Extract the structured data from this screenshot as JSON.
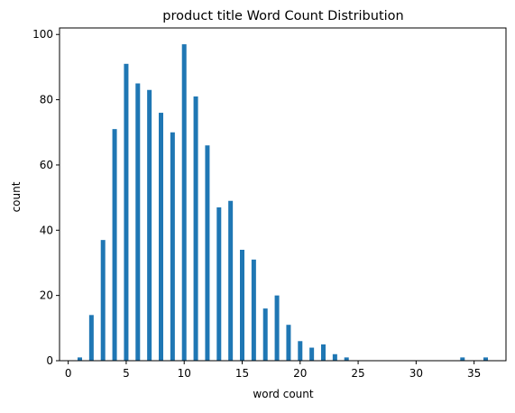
{
  "chart_data": {
    "type": "bar",
    "title": "product title Word Count Distribution",
    "xlabel": "word count",
    "ylabel": "count",
    "xlim": [
      -0.75,
      37.75
    ],
    "ylim": [
      0,
      102
    ],
    "xticks": [
      0,
      5,
      10,
      15,
      20,
      25,
      30,
      35
    ],
    "yticks": [
      0,
      20,
      40,
      60,
      80,
      100
    ],
    "bar_color": "#1f77b4",
    "grid": false,
    "x": [
      1,
      2,
      3,
      4,
      5,
      6,
      7,
      8,
      9,
      10,
      11,
      12,
      13,
      14,
      15,
      16,
      17,
      18,
      19,
      20,
      21,
      22,
      23,
      24,
      34,
      36
    ],
    "values": [
      1,
      14,
      37,
      71,
      91,
      85,
      83,
      76,
      70,
      97,
      81,
      66,
      47,
      49,
      34,
      31,
      16,
      20,
      11,
      6,
      4,
      5,
      2,
      1,
      1,
      1
    ]
  }
}
